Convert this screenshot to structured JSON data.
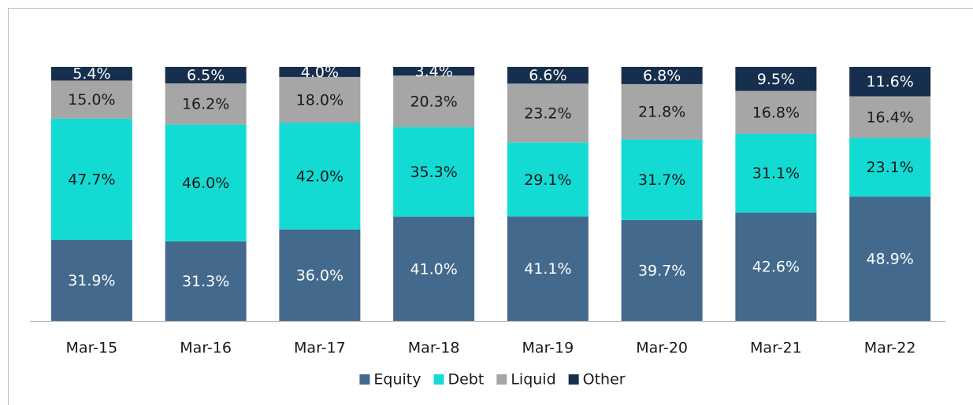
{
  "chart_data": {
    "type": "stacked_bar",
    "categories": [
      "Mar-15",
      "Mar-16",
      "Mar-17",
      "Mar-18",
      "Mar-19",
      "Mar-20",
      "Mar-21",
      "Mar-22"
    ],
    "series": [
      {
        "name": "Equity",
        "color": "#436a8d",
        "values": [
          31.9,
          31.3,
          36.0,
          41.0,
          41.1,
          39.7,
          42.6,
          48.9
        ],
        "value_labels": [
          "31.9%",
          "31.3%",
          "36.0%",
          "41.0%",
          "41.1%",
          "39.7%",
          "42.6%",
          "48.9%"
        ]
      },
      {
        "name": "Debt",
        "color": "#13dbd3",
        "values": [
          47.7,
          46.0,
          42.0,
          35.3,
          29.1,
          31.7,
          31.1,
          23.1
        ],
        "value_labels": [
          "47.7%",
          "46.0%",
          "42.0%",
          "35.3%",
          "29.1%",
          "31.7%",
          "31.1%",
          "23.1%"
        ]
      },
      {
        "name": "Liquid",
        "color": "#a6a6a6",
        "values": [
          15.0,
          16.2,
          18.0,
          20.3,
          23.2,
          21.8,
          16.8,
          16.4
        ],
        "value_labels": [
          "15.0%",
          "16.2%",
          "18.0%",
          "20.3%",
          "23.2%",
          "21.8%",
          "16.8%",
          "16.4%"
        ]
      },
      {
        "name": "Other",
        "color": "#172f4e",
        "values": [
          5.4,
          6.5,
          4.0,
          3.4,
          6.6,
          6.8,
          9.5,
          11.6
        ],
        "value_labels": [
          "5.4%",
          "6.5%",
          "4.0%",
          "3.4%",
          "6.6%",
          "6.8%",
          "9.5%",
          "11.6%"
        ]
      }
    ],
    "ylim": [
      0,
      100
    ],
    "legend": "bottom"
  }
}
